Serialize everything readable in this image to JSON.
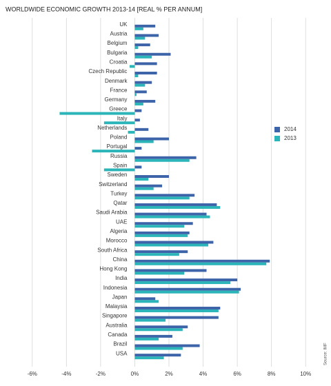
{
  "chart_data": {
    "type": "bar",
    "orientation": "horizontal",
    "title": "WORLDWIDE ECONOMIC GROWTH 2013-14 [REAL % PER ANNUM]",
    "source": "Source: IMF",
    "categories": [
      "UK",
      "Austria",
      "Belgium",
      "Bulgaria",
      "Croatia",
      "Czech Republic",
      "Denmark",
      "France",
      "Germany",
      "Greece",
      "Italy",
      "Netherlands",
      "Poland",
      "Portugal",
      "Russia",
      "Spain",
      "Sweden",
      "Switzerland",
      "Turkey",
      "Qatar",
      "Saudi Arabia",
      "UAE",
      "Algeria",
      "Morocco",
      "South Africa",
      "China",
      "Hong Kong",
      "India",
      "Indonesia",
      "Japan",
      "Malaysia",
      "Singapore",
      "Australia",
      "Canada",
      "Brazil",
      "USA"
    ],
    "series": [
      {
        "name": "2014",
        "color": "#3d64a8",
        "values": [
          1.2,
          1.4,
          0.9,
          2.1,
          1.3,
          1.3,
          1.0,
          0.7,
          1.2,
          0.4,
          0.3,
          0.8,
          2.0,
          0.4,
          3.6,
          0.4,
          2.0,
          1.6,
          3.5,
          4.8,
          4.2,
          3.4,
          3.2,
          4.6,
          3.1,
          7.9,
          4.2,
          6.0,
          6.2,
          1.2,
          5.0,
          4.9,
          3.1,
          2.2,
          3.8,
          2.7
        ]
      },
      {
        "name": "2013",
        "color": "#2cb5b8",
        "values": [
          0.5,
          0.6,
          0.2,
          1.0,
          -0.3,
          0.2,
          0.6,
          0.1,
          0.5,
          -4.4,
          -1.8,
          -0.4,
          1.1,
          -2.5,
          3.2,
          -1.8,
          0.8,
          1.1,
          3.2,
          5.0,
          4.4,
          2.9,
          3.1,
          4.3,
          2.6,
          7.7,
          2.9,
          5.6,
          6.1,
          1.4,
          4.9,
          1.8,
          2.8,
          1.4,
          2.8,
          1.7
        ]
      }
    ],
    "xlim": [
      -7,
      11
    ],
    "xticks": [
      {
        "value": -6,
        "label": "-6%"
      },
      {
        "value": -4,
        "label": "-4%"
      },
      {
        "value": -2,
        "label": "-2%"
      },
      {
        "value": 0,
        "label": "0%"
      },
      {
        "value": 2,
        "label": "2%"
      },
      {
        "value": 4,
        "label": "4%"
      },
      {
        "value": 6,
        "label": "6%"
      },
      {
        "value": 8,
        "label": "8%"
      },
      {
        "value": 10,
        "label": "10%"
      }
    ],
    "grid": true,
    "legend": "right"
  }
}
